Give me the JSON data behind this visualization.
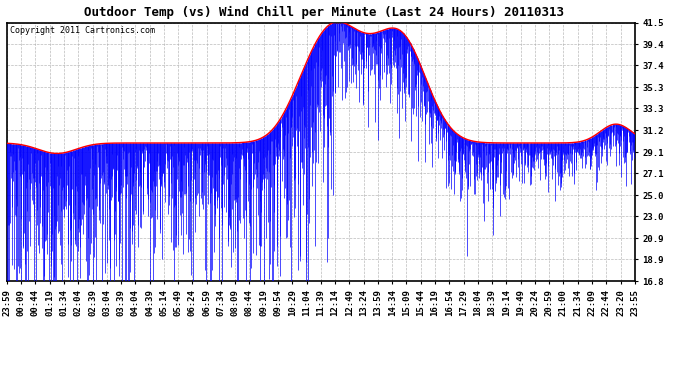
{
  "title": "Outdoor Temp (vs) Wind Chill per Minute (Last 24 Hours) 20110313",
  "copyright": "Copyright 2011 Cartronics.com",
  "ylabel_right_ticks": [
    41.5,
    39.4,
    37.4,
    35.3,
    33.3,
    31.2,
    29.1,
    27.1,
    25.0,
    23.0,
    20.9,
    18.9,
    16.8
  ],
  "ylim": [
    16.8,
    41.5
  ],
  "xlabels": [
    "23:59",
    "00:09",
    "00:44",
    "01:19",
    "01:34",
    "02:04",
    "02:39",
    "03:04",
    "03:39",
    "04:04",
    "04:39",
    "05:14",
    "05:49",
    "06:24",
    "06:59",
    "07:34",
    "08:09",
    "08:44",
    "09:19",
    "09:54",
    "10:29",
    "11:04",
    "11:39",
    "12:14",
    "12:49",
    "13:24",
    "13:59",
    "14:34",
    "15:09",
    "15:44",
    "16:19",
    "16:54",
    "17:29",
    "18:04",
    "18:39",
    "19:14",
    "19:49",
    "20:24",
    "20:59",
    "21:00",
    "21:34",
    "22:09",
    "22:44",
    "23:20",
    "23:55"
  ],
  "background_color": "#ffffff",
  "plot_bg_color": "#ffffff",
  "grid_color": "#aaaaaa",
  "blue_color": "#0000ff",
  "red_color": "#ff0000",
  "title_fontsize": 9,
  "copyright_fontsize": 6,
  "tick_fontsize": 6.5
}
